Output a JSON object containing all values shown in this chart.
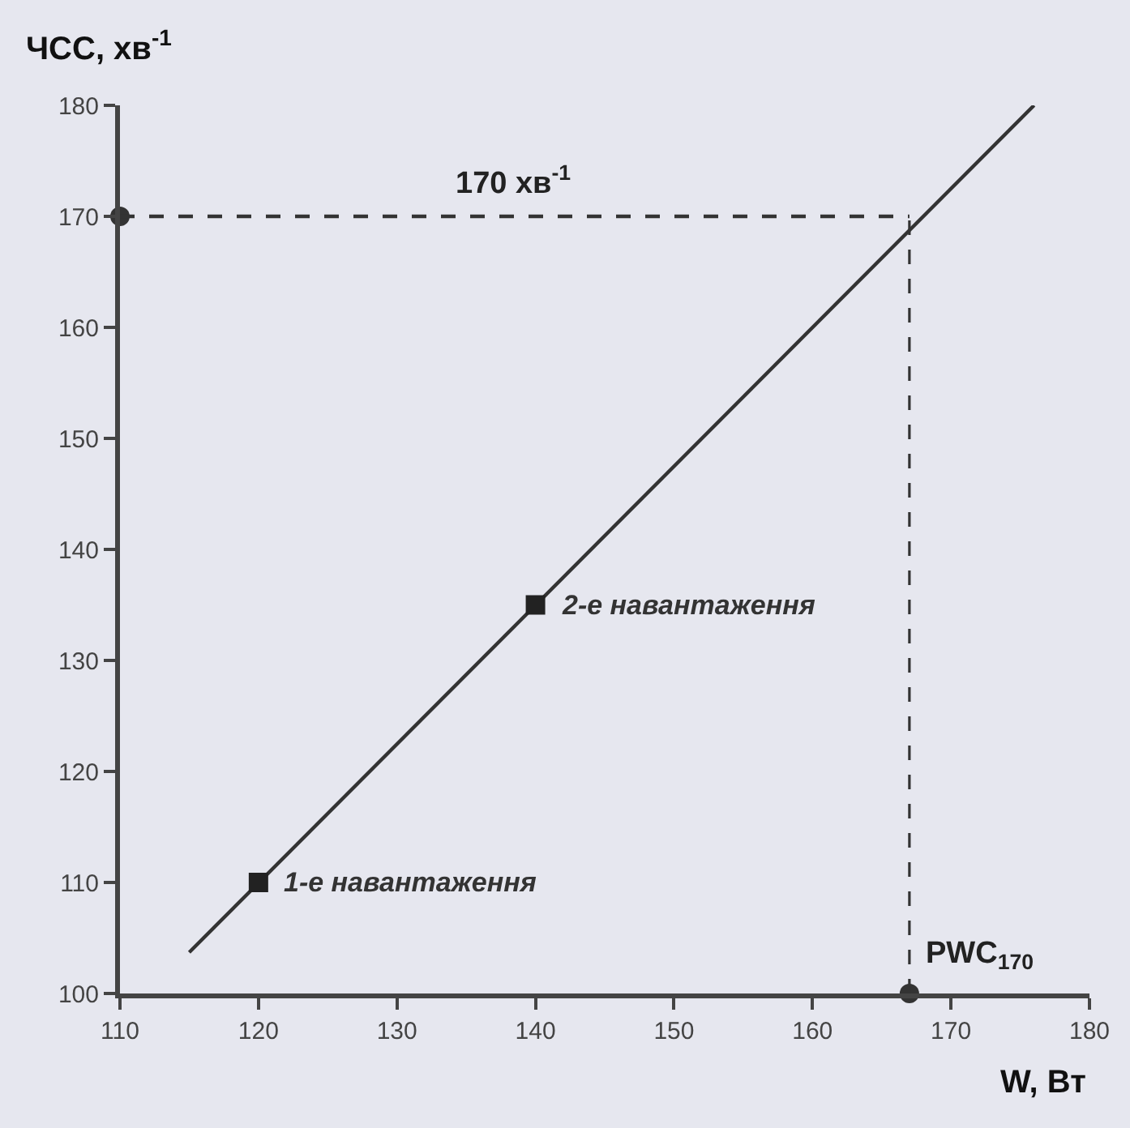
{
  "chart_data": {
    "type": "line",
    "xlabel": "W, Вт",
    "ylabel": "ЧСС, хв$^{-1}$",
    "series": [
      {
        "color": "#333333",
        "x": [
          115,
          176
        ],
        "values": [
          103.7,
          180
        ],
        "marker": "none"
      },
      {
        "type": "scatter",
        "color": "#333333",
        "x": [
          110,
          167
        ],
        "values": [
          170,
          100
        ],
        "marker": "circle"
      },
      {
        "type": "scatter",
        "color": "#222222",
        "x": [
          120,
          140
        ],
        "values": [
          110,
          135
        ],
        "marker": "square"
      }
    ],
    "annotations": [
      {
        "text": "1-е навантаження",
        "x": 120,
        "y": 110
      },
      {
        "text": "2-е навантаження",
        "x": 140,
        "y": 135
      }
    ],
    "ref_lines": [
      {
        "axis": "y",
        "value": 170,
        "label": "170 хв$^{-1}$",
        "color": "#333333",
        "line_style": "dashed"
      },
      {
        "axis": "x",
        "value": 167,
        "label": "PWC$_{170}$",
        "color": "#333333",
        "line_style": "dashed"
      }
    ],
    "xlim": [
      110,
      180
    ],
    "xticks": [
      110,
      120,
      130,
      140,
      150,
      160,
      170,
      180
    ],
    "ylim": [
      100,
      180
    ],
    "yticks": [
      100,
      110,
      120,
      130,
      140,
      150,
      160,
      170,
      180
    ],
    "grid": false
  }
}
